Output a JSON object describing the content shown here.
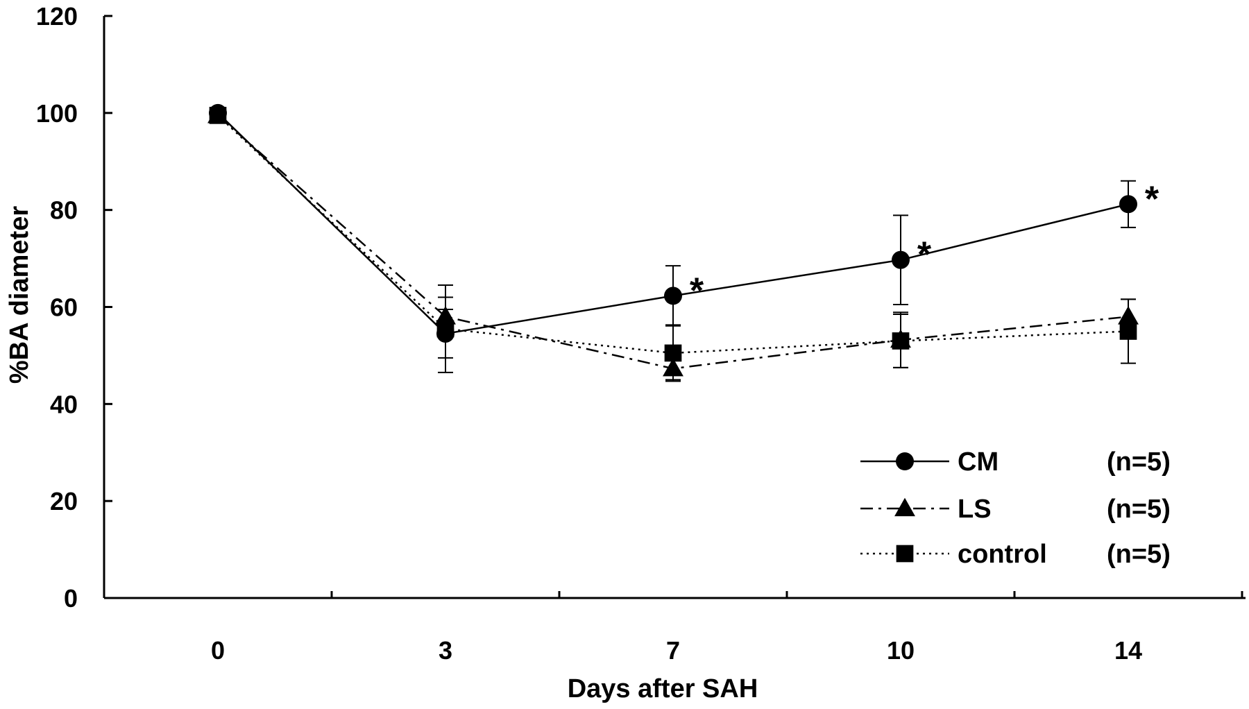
{
  "chart_data": {
    "type": "line",
    "title": "",
    "xlabel": "Days after SAH",
    "ylabel": "%BA diameter",
    "x": [
      0,
      3,
      7,
      10,
      14
    ],
    "categories": [
      "0",
      "3",
      "7",
      "10",
      "14"
    ],
    "ylim": [
      0,
      120
    ],
    "yticks": [
      "0",
      "20",
      "40",
      "60",
      "80",
      "100",
      "120"
    ],
    "grid": false,
    "legend_position": "bottom-right",
    "series": [
      {
        "name": "CM",
        "n_label": "(n=5)",
        "marker": "circle",
        "line_style": "solid",
        "values": [
          100,
          54.5,
          62.3,
          69.7,
          81.2
        ],
        "error": [
          0,
          5,
          6.2,
          9.2,
          4.8
        ]
      },
      {
        "name": "LS",
        "n_label": "(n=5)",
        "marker": "triangle",
        "line_style": "dash-dot",
        "values": [
          99.5,
          58,
          47.3,
          53.2,
          58
        ],
        "error": [
          0,
          4,
          2.3,
          5.7,
          3.6
        ]
      },
      {
        "name": "control",
        "n_label": "(n=5)",
        "marker": "square",
        "line_style": "dotted",
        "values": [
          99.5,
          55.5,
          50.5,
          53,
          55
        ],
        "error": [
          0,
          9,
          5.8,
          5.5,
          6.6
        ]
      }
    ],
    "annotations": [
      {
        "text": "*",
        "x": 7,
        "y": 62.3
      },
      {
        "text": "*",
        "x": 10,
        "y": 69.7
      },
      {
        "text": "*",
        "x": 14,
        "y": 81.2
      }
    ]
  }
}
